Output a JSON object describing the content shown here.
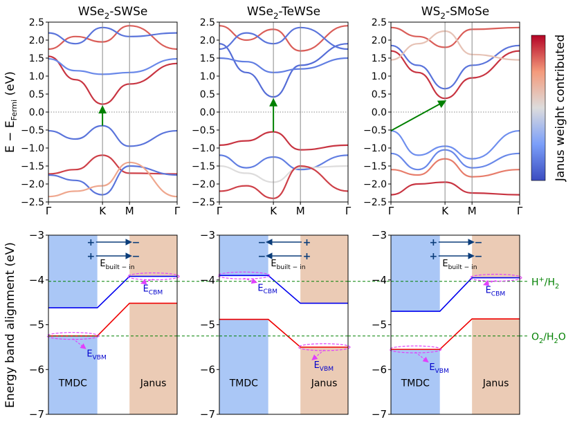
{
  "figure": {
    "ylabel_top": "E − E",
    "ylabel_top_sub": "Fermi",
    "ylabel_top_unit": " (eV)",
    "ylabel_bottom": "Energy band alignment (eV)",
    "colorbar_label": "Janus weight contributed",
    "colors": {
      "high": "#b40426",
      "mid": "#dddcdc",
      "low": "#3b4cc0",
      "fermi": "#888888",
      "arrow": "#008000"
    }
  },
  "chart_data": [
    {
      "type": "line",
      "id": "bands-wse2-swse",
      "title_main": "WSe",
      "title_sub": "2",
      "title_rest": "-SWSe",
      "ylim": [
        -2.5,
        2.5
      ],
      "yticks": [
        "2.5",
        "2.0",
        "1.5",
        "1.0",
        "0.5",
        "0.0",
        "−0.5",
        "−1.0",
        "−1.5",
        "−2.0",
        "−2.5"
      ],
      "kpath": [
        "Γ",
        "K",
        "M",
        "Γ"
      ],
      "gap": {
        "from_k": "K",
        "vbm": -0.38,
        "cbm": 0.22,
        "type": "direct"
      },
      "series": [
        {
          "name": "cb-1",
          "weight": 0.92,
          "values": [
            1.55,
            0.9,
            0.22,
            0.78,
            1.35
          ]
        },
        {
          "name": "cb-2",
          "weight": 0.18,
          "values": [
            1.48,
            1.15,
            1.05,
            1.1,
            1.48
          ]
        },
        {
          "name": "cb-3",
          "weight": 0.85,
          "values": [
            1.75,
            2.1,
            1.95,
            2.4,
            1.75
          ]
        },
        {
          "name": "cb-4",
          "weight": 0.12,
          "values": [
            2.2,
            1.9,
            2.35,
            2.1,
            2.2
          ]
        },
        {
          "name": "vb-1",
          "weight": 0.12,
          "values": [
            -0.52,
            -0.75,
            -0.38,
            -0.95,
            -0.52
          ]
        },
        {
          "name": "vb-2",
          "weight": 0.9,
          "values": [
            -1.72,
            -1.6,
            -1.2,
            -1.7,
            -1.72
          ]
        },
        {
          "name": "vb-3",
          "weight": 0.12,
          "values": [
            -1.75,
            -1.9,
            -2.3,
            -1.5,
            -1.75
          ]
        },
        {
          "name": "vb-4",
          "weight": 0.7,
          "values": [
            -2.35,
            -2.2,
            -2.05,
            -1.4,
            -2.35
          ]
        }
      ]
    },
    {
      "type": "line",
      "id": "bands-wse2-tewse",
      "title_main": "WSe",
      "title_sub": "2",
      "title_rest": "-TeWSe",
      "ylim": [
        -2.5,
        2.5
      ],
      "yticks": [
        "2.5",
        "2.0",
        "1.5",
        "1.0",
        "0.5",
        "0.0",
        "−0.5",
        "−1.0",
        "−1.5",
        "−2.0",
        "−2.5"
      ],
      "kpath": [
        "Γ",
        "K",
        "M",
        "Γ"
      ],
      "gap": {
        "from_k": "K",
        "vbm": -0.55,
        "cbm": 0.42,
        "type": "direct"
      },
      "series": [
        {
          "name": "cb-1",
          "weight": 0.1,
          "values": [
            1.9,
            1.1,
            0.42,
            1.3,
            1.9
          ]
        },
        {
          "name": "cb-2",
          "weight": 0.15,
          "values": [
            1.5,
            1.4,
            1.1,
            1.2,
            1.5
          ]
        },
        {
          "name": "cb-3",
          "weight": 0.85,
          "values": [
            2.4,
            2.0,
            2.3,
            1.7,
            2.4
          ]
        },
        {
          "name": "cb-4",
          "weight": 0.12,
          "values": [
            1.75,
            2.2,
            1.9,
            2.35,
            1.75
          ]
        },
        {
          "name": "vb-1",
          "weight": 0.92,
          "values": [
            -0.92,
            -0.8,
            -0.55,
            -1.05,
            -0.92
          ]
        },
        {
          "name": "vb-2",
          "weight": 0.15,
          "values": [
            -1.2,
            -1.55,
            -1.25,
            -1.6,
            -1.2
          ]
        },
        {
          "name": "vb-3",
          "weight": 0.5,
          "values": [
            -1.5,
            -1.7,
            -1.95,
            -1.55,
            -1.5
          ]
        },
        {
          "name": "vb-4",
          "weight": 0.9,
          "values": [
            -2.2,
            -2.05,
            -2.4,
            -1.5,
            -2.2
          ]
        }
      ]
    },
    {
      "type": "line",
      "id": "bands-ws2-smose",
      "title_main": "WS",
      "title_sub": "2",
      "title_rest": "-SMoSe",
      "ylim": [
        -2.5,
        2.5
      ],
      "yticks": [
        "2.5",
        "2.0",
        "1.5",
        "1.0",
        "0.5",
        "0.0",
        "−0.5",
        "−1.0",
        "−1.5",
        "−2.0",
        "−2.5"
      ],
      "kpath": [
        "Γ",
        "K",
        "M",
        "Γ"
      ],
      "gap": {
        "from_k": "Γ",
        "vbm": -0.52,
        "cbm": 0.38,
        "type": "indirect"
      },
      "series": [
        {
          "name": "cb-1",
          "weight": 0.92,
          "values": [
            1.7,
            1.1,
            0.38,
            0.95,
            1.7
          ]
        },
        {
          "name": "cb-2",
          "weight": 0.12,
          "values": [
            1.85,
            1.3,
            0.65,
            1.3,
            1.85
          ]
        },
        {
          "name": "cb-3",
          "weight": 0.85,
          "values": [
            2.35,
            2.1,
            1.8,
            2.3,
            2.35
          ]
        },
        {
          "name": "cb-4",
          "weight": 0.6,
          "values": [
            1.45,
            1.9,
            2.25,
            1.6,
            1.45
          ]
        },
        {
          "name": "vb-1",
          "weight": 0.2,
          "values": [
            -0.52,
            -1.2,
            -0.95,
            -1.3,
            -0.52
          ]
        },
        {
          "name": "vb-2",
          "weight": 0.18,
          "values": [
            -1.15,
            -1.6,
            -1.05,
            -1.55,
            -1.15
          ]
        },
        {
          "name": "vb-3",
          "weight": 0.8,
          "values": [
            -1.6,
            -1.75,
            -1.3,
            -1.8,
            -1.6
          ]
        },
        {
          "name": "vb-4",
          "weight": 0.92,
          "values": [
            -2.3,
            -2.0,
            -1.95,
            -2.25,
            -2.3
          ]
        }
      ]
    },
    {
      "type": "line",
      "id": "align-wse2-swse",
      "ylim": [
        -7,
        -3
      ],
      "yticks": [
        "−3",
        "−4",
        "−5",
        "−6",
        "−7"
      ],
      "left_label": "TMDC",
      "right_label": "Janus",
      "left": {
        "cbm": -4.62,
        "vbm": -5.25
      },
      "right": {
        "cbm": -3.92,
        "vbm": -4.52
      },
      "ecbm_side": "right",
      "evbm_side": "left",
      "charge": {
        "left": "+",
        "right": "−",
        "arrow": "right"
      },
      "ebuiltin_main": "E",
      "ebuiltin_sub": "built − in",
      "ecbm_main": "E",
      "ecbm_sub": "CBM",
      "evbm_main": "E",
      "evbm_sub": "VBM"
    },
    {
      "type": "line",
      "id": "align-wse2-tewse",
      "ylim": [
        -7,
        -3
      ],
      "yticks": [
        "−3",
        "−4",
        "−5",
        "−6",
        "−7"
      ],
      "left_label": "TMDC",
      "right_label": "Janus",
      "left": {
        "cbm": -3.9,
        "vbm": -4.88
      },
      "right": {
        "cbm": -4.52,
        "vbm": -5.5
      },
      "ecbm_side": "left",
      "evbm_side": "right",
      "charge": {
        "left": "−",
        "right": "+",
        "arrow": "left"
      },
      "ebuiltin_main": "E",
      "ebuiltin_sub": "built − in",
      "ecbm_main": "E",
      "ecbm_sub": "CBM",
      "evbm_main": "E",
      "evbm_sub": "VBM"
    },
    {
      "type": "line",
      "id": "align-ws2-smose",
      "ylim": [
        -7,
        -3
      ],
      "yticks": [
        "−3",
        "−4",
        "−5",
        "−6",
        "−7"
      ],
      "left_label": "TMDC",
      "right_label": "Janus",
      "left": {
        "cbm": -4.7,
        "vbm": -5.55
      },
      "right": {
        "cbm": -3.95,
        "vbm": -4.87
      },
      "ecbm_side": "right",
      "evbm_side": "left",
      "charge": {
        "left": "+",
        "right": "−",
        "arrow": "right"
      },
      "ebuiltin_main": "E",
      "ebuiltin_sub": "built − in",
      "ecbm_main": "E",
      "ecbm_sub": "CBM",
      "evbm_main": "E",
      "evbm_sub": "VBM"
    }
  ],
  "reference_levels": [
    {
      "id": "h",
      "value": -4.03,
      "label_main": "H",
      "label_sup": "+",
      "label_rest": "/H",
      "label_sub": "2"
    },
    {
      "id": "o",
      "value": -5.25,
      "label_main": "O",
      "label_sub": "2",
      "label_rest": "/H",
      "label_sub2": "2",
      "label_tail": "O"
    }
  ]
}
